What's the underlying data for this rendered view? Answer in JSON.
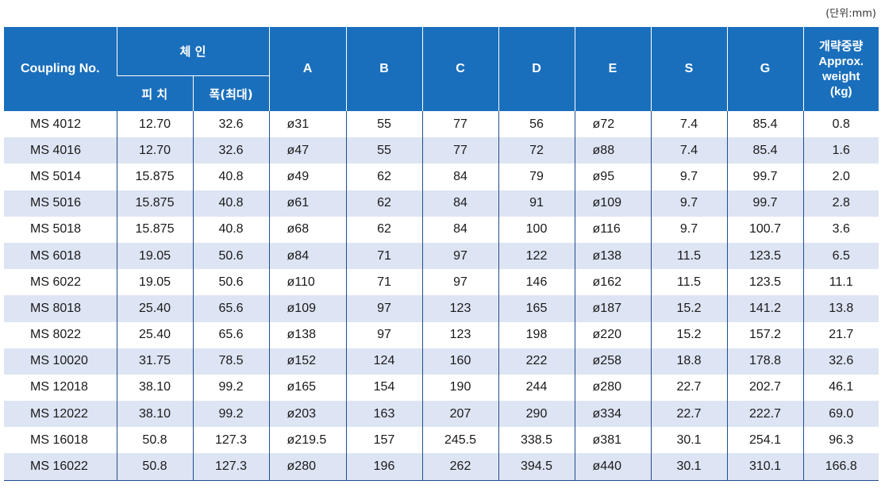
{
  "unit_note": "(단위:mm)",
  "headers": {
    "coupling_no": "Coupling No.",
    "chain": "체 인",
    "pitch": "피 치",
    "width": "폭(최대)",
    "a": "A",
    "b": "B",
    "c": "C",
    "d": "D",
    "e": "E",
    "s": "S",
    "g": "G",
    "weight_kr": "개략중량",
    "weight_en1": "Approx.",
    "weight_en2": "weight",
    "weight_unit": "(kg)"
  },
  "rows": [
    {
      "no": "MS 4012",
      "pitch": "12.70",
      "width": "32.6",
      "a": "ø31",
      "b": "55",
      "c": "77",
      "d": "56",
      "e": "ø72",
      "s": "7.4",
      "g": "85.4",
      "w": "0.8"
    },
    {
      "no": "MS 4016",
      "pitch": "12.70",
      "width": "32.6",
      "a": "ø47",
      "b": "55",
      "c": "77",
      "d": "72",
      "e": "ø88",
      "s": "7.4",
      "g": "85.4",
      "w": "1.6"
    },
    {
      "no": "MS 5014",
      "pitch": "15.875",
      "width": "40.8",
      "a": "ø49",
      "b": "62",
      "c": "84",
      "d": "79",
      "e": "ø95",
      "s": "9.7",
      "g": "99.7",
      "w": "2.0"
    },
    {
      "no": "MS 5016",
      "pitch": "15.875",
      "width": "40.8",
      "a": "ø61",
      "b": "62",
      "c": "84",
      "d": "91",
      "e": "ø109",
      "s": "9.7",
      "g": "99.7",
      "w": "2.8"
    },
    {
      "no": "MS 5018",
      "pitch": "15.875",
      "width": "40.8",
      "a": "ø68",
      "b": "62",
      "c": "84",
      "d": "100",
      "e": "ø116",
      "s": "9.7",
      "g": "100.7",
      "w": "3.6"
    },
    {
      "no": "MS 6018",
      "pitch": "19.05",
      "width": "50.6",
      "a": "ø84",
      "b": "71",
      "c": "97",
      "d": "122",
      "e": "ø138",
      "s": "11.5",
      "g": "123.5",
      "w": "6.5"
    },
    {
      "no": "MS 6022",
      "pitch": "19.05",
      "width": "50.6",
      "a": "ø110",
      "b": "71",
      "c": "97",
      "d": "146",
      "e": "ø162",
      "s": "11.5",
      "g": "123.5",
      "w": "11.1"
    },
    {
      "no": "MS 8018",
      "pitch": "25.40",
      "width": "65.6",
      "a": "ø109",
      "b": "97",
      "c": "123",
      "d": "165",
      "e": "ø187",
      "s": "15.2",
      "g": "141.2",
      "w": "13.8"
    },
    {
      "no": "MS 8022",
      "pitch": "25.40",
      "width": "65.6",
      "a": "ø138",
      "b": "97",
      "c": "123",
      "d": "198",
      "e": "ø220",
      "s": "15.2",
      "g": "157.2",
      "w": "21.7"
    },
    {
      "no": "MS 10020",
      "pitch": "31.75",
      "width": "78.5",
      "a": "ø152",
      "b": "124",
      "c": "160",
      "d": "222",
      "e": "ø258",
      "s": "18.8",
      "g": "178.8",
      "w": "32.6"
    },
    {
      "no": "MS 12018",
      "pitch": "38.10",
      "width": "99.2",
      "a": "ø165",
      "b": "154",
      "c": "190",
      "d": "244",
      "e": "ø280",
      "s": "22.7",
      "g": "202.7",
      "w": "46.1"
    },
    {
      "no": "MS 12022",
      "pitch": "38.10",
      "width": "99.2",
      "a": "ø203",
      "b": "163",
      "c": "207",
      "d": "290",
      "e": "ø334",
      "s": "22.7",
      "g": "222.7",
      "w": "69.0"
    },
    {
      "no": "MS 16018",
      "pitch": "50.8",
      "width": "127.3",
      "a": "ø219.5",
      "b": "157",
      "c": "245.5",
      "d": "338.5",
      "e": "ø381",
      "s": "30.1",
      "g": "254.1",
      "w": "96.3"
    },
    {
      "no": "MS 16022",
      "pitch": "50.8",
      "width": "127.3",
      "a": "ø280",
      "b": "196",
      "c": "262",
      "d": "394.5",
      "e": "ø440",
      "s": "30.1",
      "g": "310.1",
      "w": "166.8"
    }
  ]
}
